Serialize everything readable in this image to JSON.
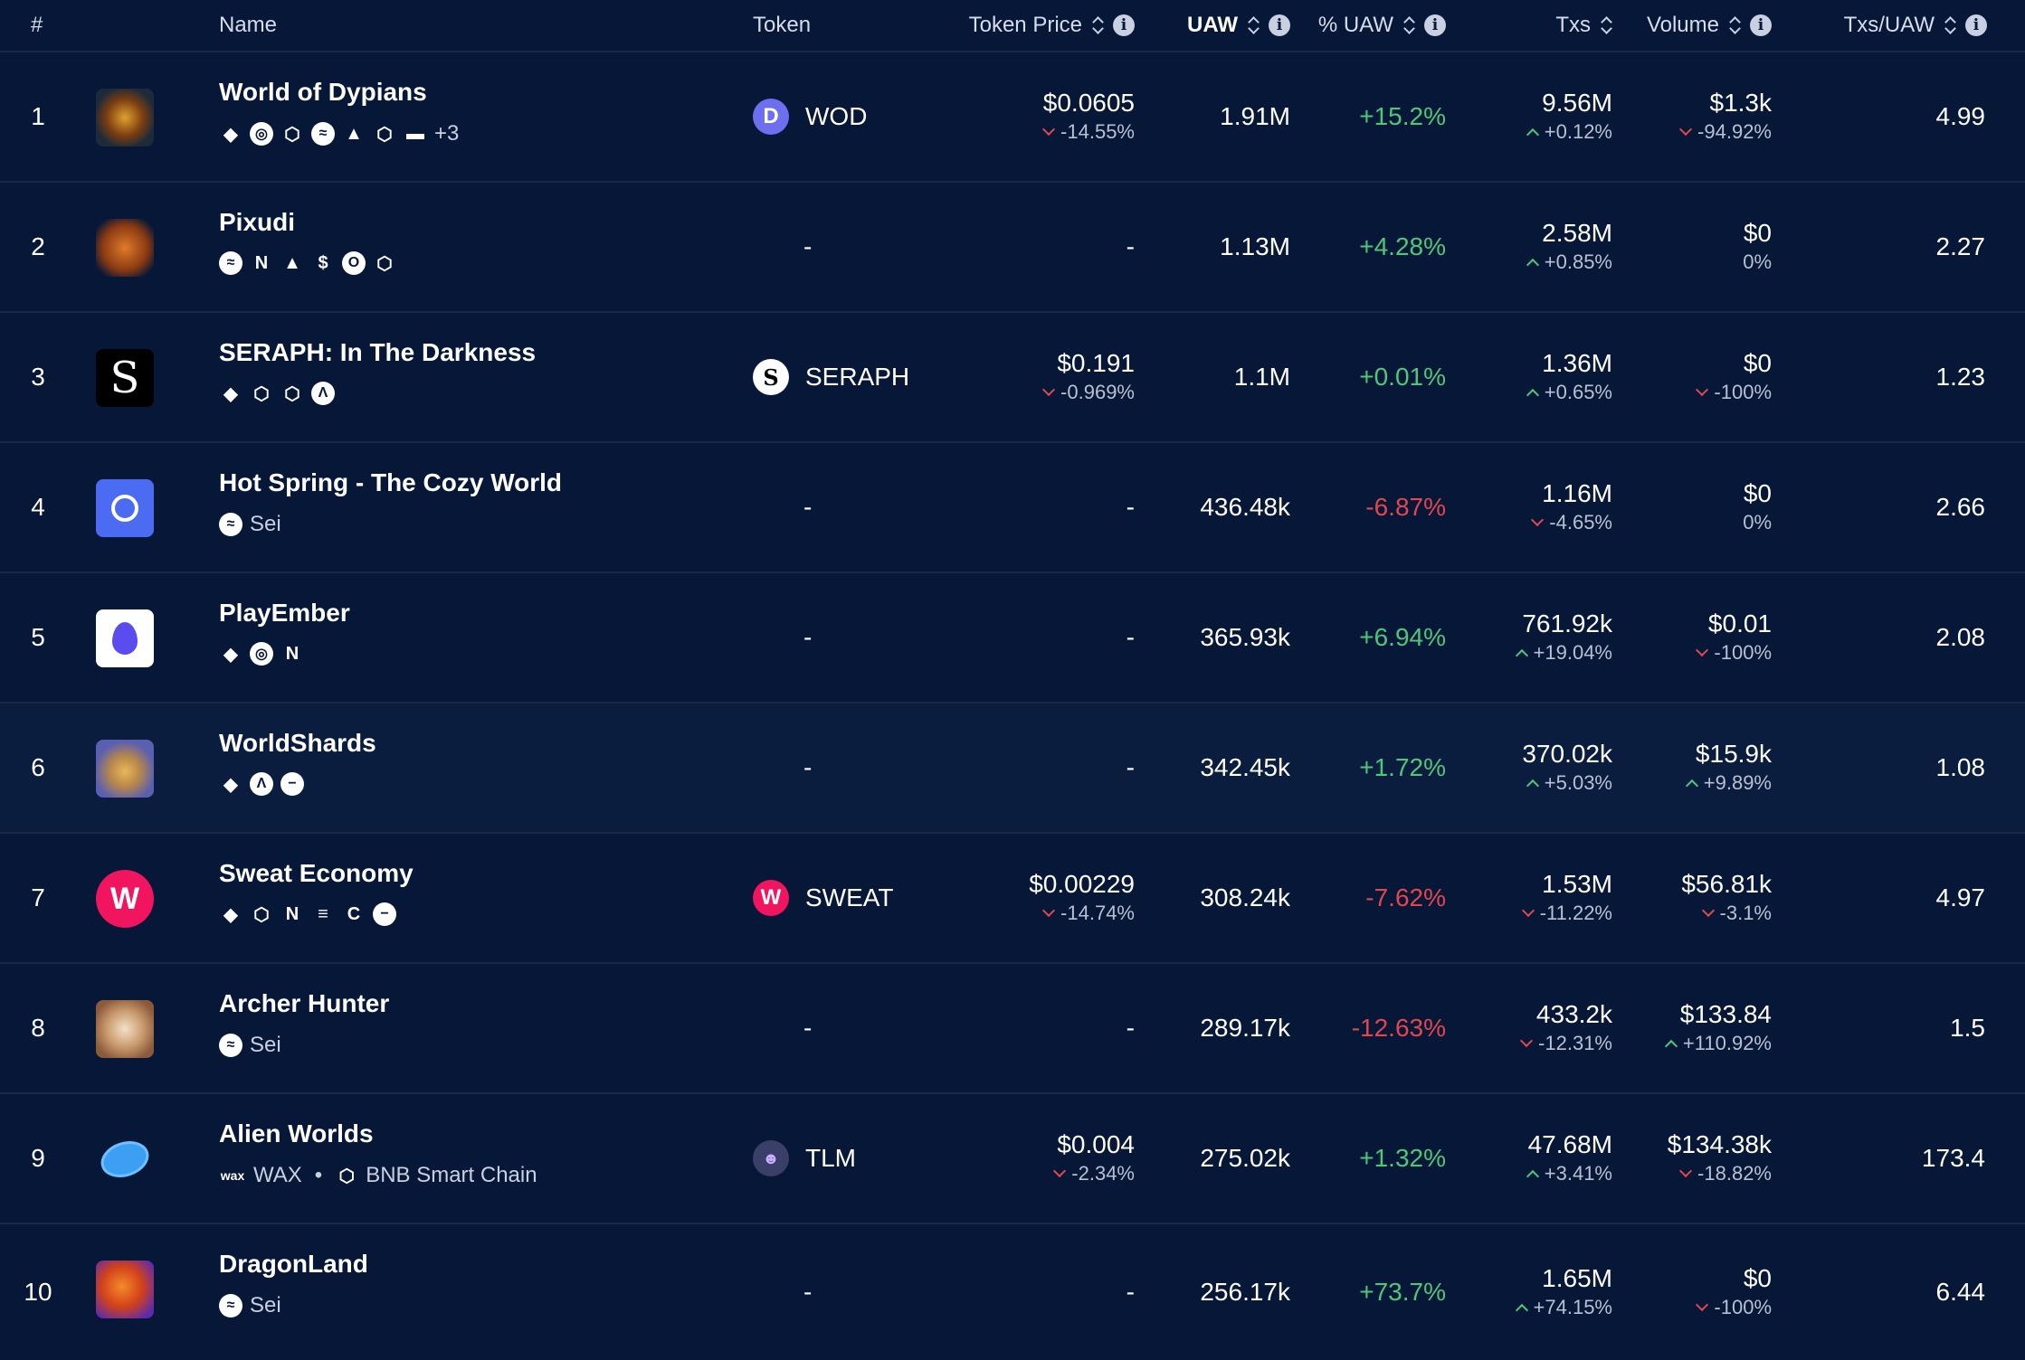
{
  "headers": {
    "rank": "#",
    "name": "Name",
    "token": "Token",
    "token_price": "Token Price",
    "uaw": "UAW",
    "pct_uaw": "% UAW",
    "txs": "Txs",
    "volume": "Volume",
    "txs_uaw": "Txs/UAW"
  },
  "rows": [
    {
      "rank": "1",
      "name": "World of Dypians",
      "chains_extra": "+3",
      "token": "WOD",
      "price": "$0.0605",
      "price_change": "-14.55%",
      "uaw": "1.91M",
      "pct_uaw": "+15.2%",
      "txs": "9.56M",
      "txs_change": "+0.12%",
      "volume": "$1.3k",
      "volume_change": "-94.92%",
      "txs_uaw": "4.99"
    },
    {
      "rank": "2",
      "name": "Pixudi",
      "token": "-",
      "price": "-",
      "uaw": "1.13M",
      "pct_uaw": "+4.28%",
      "txs": "2.58M",
      "txs_change": "+0.85%",
      "volume": "$0",
      "volume_change": "0%",
      "txs_uaw": "2.27"
    },
    {
      "rank": "3",
      "name": "SERAPH: In The Darkness",
      "token": "SERAPH",
      "price": "$0.191",
      "price_change": "-0.969%",
      "uaw": "1.1M",
      "pct_uaw": "+0.01%",
      "txs": "1.36M",
      "txs_change": "+0.65%",
      "volume": "$0",
      "volume_change": "-100%",
      "txs_uaw": "1.23"
    },
    {
      "rank": "4",
      "name": "Hot Spring - The Cozy World",
      "chain_label": "Sei",
      "token": "-",
      "price": "-",
      "uaw": "436.48k",
      "pct_uaw": "-6.87%",
      "txs": "1.16M",
      "txs_change": "-4.65%",
      "volume": "$0",
      "volume_change": "0%",
      "txs_uaw": "2.66"
    },
    {
      "rank": "5",
      "name": "PlayEmber",
      "token": "-",
      "price": "-",
      "uaw": "365.93k",
      "pct_uaw": "+6.94%",
      "txs": "761.92k",
      "txs_change": "+19.04%",
      "volume": "$0.01",
      "volume_change": "-100%",
      "txs_uaw": "2.08"
    },
    {
      "rank": "6",
      "name": "WorldShards",
      "token": "-",
      "price": "-",
      "uaw": "342.45k",
      "pct_uaw": "+1.72%",
      "txs": "370.02k",
      "txs_change": "+5.03%",
      "volume": "$15.9k",
      "volume_change": "+9.89%",
      "txs_uaw": "1.08"
    },
    {
      "rank": "7",
      "name": "Sweat Economy",
      "token": "SWEAT",
      "price": "$0.00229",
      "price_change": "-14.74%",
      "uaw": "308.24k",
      "pct_uaw": "-7.62%",
      "txs": "1.53M",
      "txs_change": "-11.22%",
      "volume": "$56.81k",
      "volume_change": "-3.1%",
      "txs_uaw": "4.97"
    },
    {
      "rank": "8",
      "name": "Archer Hunter",
      "chain_label": "Sei",
      "token": "-",
      "price": "-",
      "uaw": "289.17k",
      "pct_uaw": "-12.63%",
      "txs": "433.2k",
      "txs_change": "-12.31%",
      "volume": "$133.84",
      "volume_change": "+110.92%",
      "txs_uaw": "1.5"
    },
    {
      "rank": "9",
      "name": "Alien Worlds",
      "chain_label": "WAX",
      "chain_label_2": "BNB Smart Chain",
      "token": "TLM",
      "price": "$0.004",
      "price_change": "-2.34%",
      "uaw": "275.02k",
      "pct_uaw": "+1.32%",
      "txs": "47.68M",
      "txs_change": "+3.41%",
      "volume": "$134.38k",
      "volume_change": "-18.82%",
      "txs_uaw": "173.4"
    },
    {
      "rank": "10",
      "name": "DragonLand",
      "chain_label": "Sei",
      "token": "-",
      "price": "-",
      "uaw": "256.17k",
      "pct_uaw": "+73.7%",
      "txs": "1.65M",
      "txs_change": "+74.15%",
      "volume": "$0",
      "volume_change": "-100%",
      "txs_uaw": "6.44"
    }
  ],
  "colors": {
    "background": "#061737",
    "positive": "#4ec77a",
    "negative": "#e0474f",
    "row_highlight": "#0b1d3e"
  },
  "icons": {
    "sort": "sort-icon",
    "info": "info-icon",
    "ethereum": "ethereum-icon",
    "bnb": "bnb-chain-icon",
    "sei": "sei-icon",
    "near": "near-icon"
  }
}
